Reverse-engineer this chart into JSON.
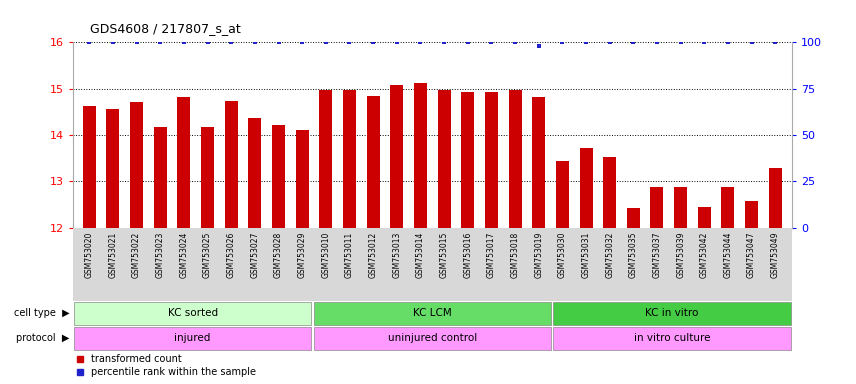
{
  "title": "GDS4608 / 217807_s_at",
  "samples": [
    "GSM753020",
    "GSM753021",
    "GSM753022",
    "GSM753023",
    "GSM753024",
    "GSM753025",
    "GSM753026",
    "GSM753027",
    "GSM753028",
    "GSM753029",
    "GSM753010",
    "GSM753011",
    "GSM753012",
    "GSM753013",
    "GSM753014",
    "GSM753015",
    "GSM753016",
    "GSM753017",
    "GSM753018",
    "GSM753019",
    "GSM753030",
    "GSM753031",
    "GSM753032",
    "GSM753035",
    "GSM753037",
    "GSM753039",
    "GSM753042",
    "GSM753044",
    "GSM753047",
    "GSM753049"
  ],
  "bar_values": [
    14.62,
    14.57,
    14.71,
    14.18,
    14.83,
    14.18,
    14.74,
    14.37,
    14.22,
    14.1,
    14.97,
    14.97,
    14.84,
    15.07,
    15.12,
    14.97,
    14.93,
    14.93,
    14.97,
    14.83,
    13.43,
    13.72,
    13.52,
    12.42,
    12.87,
    12.87,
    12.44,
    12.88,
    12.58,
    13.28
  ],
  "percentile_pct": [
    100,
    100,
    100,
    100,
    100,
    100,
    100,
    100,
    100,
    100,
    100,
    100,
    100,
    100,
    100,
    100,
    100,
    100,
    100,
    98,
    100,
    100,
    100,
    100,
    100,
    100,
    100,
    100,
    100,
    100
  ],
  "bar_color": "#cc0000",
  "dot_color": "#2222cc",
  "ylim_left": [
    12,
    16
  ],
  "ylim_right": [
    0,
    100
  ],
  "yticks_left": [
    12,
    13,
    14,
    15,
    16
  ],
  "yticks_right": [
    0,
    25,
    50,
    75,
    100
  ],
  "groups": [
    {
      "label": "KC sorted",
      "start": 0,
      "end": 9,
      "color": "#ccffcc"
    },
    {
      "label": "KC LCM",
      "start": 10,
      "end": 19,
      "color": "#66dd66"
    },
    {
      "label": "KC in vitro",
      "start": 20,
      "end": 29,
      "color": "#44cc44"
    }
  ],
  "protocols": [
    {
      "label": "injured",
      "start": 0,
      "end": 9,
      "color": "#ff99ff"
    },
    {
      "label": "uninjured control",
      "start": 10,
      "end": 19,
      "color": "#ff99ff"
    },
    {
      "label": "in vitro culture",
      "start": 20,
      "end": 29,
      "color": "#ff99ff"
    }
  ],
  "cell_type_label": "cell type",
  "protocol_label": "protocol",
  "background_color": "#ffffff",
  "plot_bg_color": "#ffffff",
  "xlabel_bg_color": "#d8d8d8"
}
